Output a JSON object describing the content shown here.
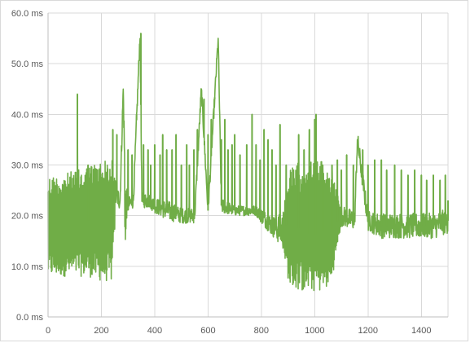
{
  "chart_data": {
    "type": "line",
    "title": "",
    "xlabel": "",
    "ylabel": "",
    "xlim": [
      0,
      1500
    ],
    "ylim": [
      0,
      60
    ],
    "x_ticks": [
      0,
      200,
      400,
      600,
      800,
      1000,
      1200,
      1400
    ],
    "x_tick_labels": [
      "0",
      "200",
      "400",
      "600",
      "800",
      "1000",
      "1200",
      "1400"
    ],
    "y_ticks": [
      0,
      10,
      20,
      30,
      40,
      50,
      60
    ],
    "y_tick_labels": [
      "0.0 ms",
      "10.0 ms",
      "20.0 ms",
      "30.0 ms",
      "40.0 ms",
      "50.0 ms",
      "60.0 ms"
    ],
    "grid": true,
    "legend": "none",
    "series_color": "#70ad47",
    "series": [
      {
        "x": [
          0,
          50,
          100,
          107,
          112,
          150,
          200,
          240,
          255,
          270,
          282,
          290,
          300,
          320,
          345,
          352,
          380,
          400,
          450,
          500,
          550,
          575,
          600,
          638,
          650,
          700,
          750,
          780,
          800,
          840,
          880,
          905,
          950,
          1000,
          1020,
          1060,
          1100,
          1150,
          1160,
          1200,
          1250,
          1300,
          1350,
          1400,
          1450,
          1500
        ],
        "values": [
          20,
          19,
          18,
          44,
          19,
          19,
          20,
          22,
          24,
          23,
          45,
          23,
          22,
          23,
          56,
          23,
          23,
          22,
          21,
          20,
          20,
          45,
          21,
          55,
          22,
          21,
          21,
          21,
          20,
          18,
          17,
          19,
          17,
          16,
          17,
          17,
          20,
          19,
          35,
          19,
          18,
          18,
          18,
          18,
          18,
          19
        ],
        "band_min": [
          8,
          8,
          8,
          8,
          8,
          8,
          7,
          7,
          22,
          21,
          21,
          15,
          21,
          21,
          21,
          21,
          21,
          20,
          19,
          19,
          19,
          19,
          19,
          19,
          19,
          20,
          20,
          20,
          19,
          17,
          14,
          6,
          5,
          5,
          5,
          6,
          18,
          17,
          17,
          17,
          16,
          16,
          16,
          16,
          16,
          16
        ],
        "band_max": [
          28,
          28,
          29,
          29,
          29,
          30,
          31,
          31,
          26,
          25,
          25,
          25,
          24,
          24,
          24,
          24,
          24,
          23,
          23,
          22,
          22,
          22,
          22,
          22,
          22,
          22,
          22,
          22,
          22,
          21,
          21,
          29,
          31,
          31,
          31,
          29,
          22,
          21,
          21,
          21,
          21,
          21,
          21,
          21,
          21,
          21
        ],
        "spikes": [
          [
            110,
            44
          ],
          [
            150,
            30
          ],
          [
            243,
            37
          ],
          [
            258,
            36
          ],
          [
            282,
            45
          ],
          [
            300,
            33
          ],
          [
            315,
            32
          ],
          [
            332,
            40
          ],
          [
            348,
            56
          ],
          [
            358,
            34
          ],
          [
            375,
            33
          ],
          [
            385,
            30
          ],
          [
            400,
            34
          ],
          [
            420,
            32
          ],
          [
            430,
            36
          ],
          [
            445,
            33
          ],
          [
            465,
            33
          ],
          [
            480,
            36
          ],
          [
            500,
            30
          ],
          [
            520,
            34
          ],
          [
            530,
            30
          ],
          [
            547,
            33
          ],
          [
            560,
            37
          ],
          [
            575,
            45
          ],
          [
            585,
            43
          ],
          [
            600,
            36
          ],
          [
            612,
            39
          ],
          [
            625,
            43
          ],
          [
            638,
            55
          ],
          [
            650,
            35
          ],
          [
            663,
            39
          ],
          [
            675,
            33
          ],
          [
            690,
            34
          ],
          [
            700,
            36
          ],
          [
            720,
            32
          ],
          [
            745,
            34
          ],
          [
            765,
            40
          ],
          [
            780,
            34
          ],
          [
            795,
            31
          ],
          [
            810,
            37
          ],
          [
            825,
            35
          ],
          [
            840,
            33
          ],
          [
            855,
            30
          ],
          [
            870,
            38
          ],
          [
            893,
            30
          ],
          [
            940,
            36
          ],
          [
            960,
            33
          ],
          [
            980,
            37
          ],
          [
            1000,
            39
          ],
          [
            1005,
            40
          ],
          [
            1030,
            30
          ],
          [
            1065,
            30
          ],
          [
            1085,
            31
          ],
          [
            1100,
            29
          ],
          [
            1120,
            32
          ],
          [
            1145,
            30
          ],
          [
            1160,
            35
          ],
          [
            1180,
            33
          ],
          [
            1200,
            30
          ],
          [
            1225,
            31
          ],
          [
            1250,
            31
          ],
          [
            1270,
            29
          ],
          [
            1300,
            30
          ],
          [
            1325,
            29
          ],
          [
            1350,
            28
          ],
          [
            1375,
            29
          ],
          [
            1400,
            28
          ],
          [
            1420,
            27
          ],
          [
            1445,
            28
          ],
          [
            1470,
            27
          ],
          [
            1490,
            28
          ],
          [
            1500,
            23
          ]
        ]
      }
    ]
  }
}
